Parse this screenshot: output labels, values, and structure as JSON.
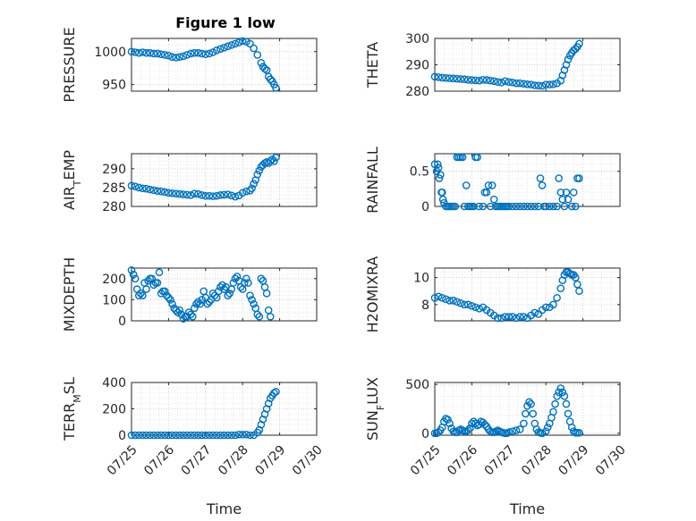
{
  "title": "Figure 1 low",
  "color": "#0072bd",
  "chart_data": [
    {
      "type": "scatter",
      "xlabel": "",
      "ylabel": "PRESSURE",
      "ylabel_main": "PRESSURE",
      "ylabel_sub": "",
      "ylabel_rest": "",
      "xlim": [
        0,
        5
      ],
      "ylim": [
        940,
        1020
      ],
      "yticks": [
        950,
        1000
      ],
      "ytick_labels": [
        "950",
        "1000"
      ],
      "xticks": [
        0,
        1,
        2,
        3,
        4,
        5
      ],
      "xtick_labels": [
        "07/25",
        "07/26",
        "07/27",
        "07/28",
        "07/29",
        "07/30"
      ],
      "show_xtick_labels": false,
      "grid": true,
      "x": [
        0,
        0.1,
        0.2,
        0.3,
        0.4,
        0.5,
        0.6,
        0.7,
        0.8,
        0.9,
        1.0,
        1.1,
        1.2,
        1.3,
        1.4,
        1.5,
        1.6,
        1.7,
        1.8,
        1.9,
        2.0,
        2.1,
        2.2,
        2.3,
        2.4,
        2.5,
        2.6,
        2.7,
        2.8,
        2.9,
        3.0,
        3.1,
        3.2,
        3.3,
        3.4,
        3.5,
        3.55,
        3.6,
        3.65,
        3.7,
        3.75,
        3.8,
        3.85,
        3.9
      ],
      "y": [
        1000,
        999,
        998,
        999,
        998,
        998,
        997,
        997,
        996,
        995,
        994,
        992,
        991,
        992,
        993,
        995,
        997,
        998,
        998,
        997,
        996,
        997,
        999,
        1002,
        1004,
        1006,
        1008,
        1010,
        1012,
        1014,
        1016,
        1015,
        1012,
        1005,
        995,
        983,
        977,
        974,
        972,
        962,
        958,
        955,
        950,
        945
      ]
    },
    {
      "type": "scatter",
      "xlabel": "",
      "ylabel": "THETA",
      "ylabel_main": "THETA",
      "ylabel_sub": "",
      "ylabel_rest": "",
      "xlim": [
        0,
        5
      ],
      "ylim": [
        280,
        300
      ],
      "yticks": [
        280,
        290,
        300
      ],
      "ytick_labels": [
        "280",
        "290",
        "300"
      ],
      "xticks": [
        0,
        1,
        2,
        3,
        4,
        5
      ],
      "xtick_labels": [
        "07/25",
        "07/26",
        "07/27",
        "07/28",
        "07/29",
        "07/30"
      ],
      "show_xtick_labels": false,
      "grid": true,
      "x": [
        0,
        0.1,
        0.2,
        0.3,
        0.4,
        0.5,
        0.6,
        0.7,
        0.8,
        0.9,
        1.0,
        1.1,
        1.2,
        1.3,
        1.4,
        1.5,
        1.6,
        1.7,
        1.8,
        1.9,
        2.0,
        2.1,
        2.2,
        2.3,
        2.4,
        2.5,
        2.6,
        2.7,
        2.8,
        2.9,
        3.0,
        3.1,
        3.2,
        3.3,
        3.4,
        3.45,
        3.5,
        3.55,
        3.6,
        3.65,
        3.7,
        3.75,
        3.8,
        3.85,
        3.9
      ],
      "y": [
        285.5,
        285.3,
        285.1,
        285.0,
        284.9,
        284.8,
        284.7,
        284.6,
        284.5,
        284.3,
        284.2,
        284.1,
        284.0,
        284.3,
        284.2,
        284.0,
        283.8,
        283.5,
        283.3,
        283.8,
        283.5,
        283.3,
        283.0,
        283.0,
        282.8,
        282.6,
        282.5,
        282.2,
        282.1,
        282.0,
        282.5,
        282.5,
        282.6,
        283.0,
        284.0,
        286.0,
        288.0,
        290.0,
        292.0,
        293.5,
        294.5,
        295.5,
        296.0,
        296.8,
        298.0
      ]
    },
    {
      "type": "scatter",
      "xlabel": "",
      "ylabel": "AIR_TEMP",
      "ylabel_main": "AIR",
      "ylabel_sub": "T",
      "ylabel_rest": "EMP",
      "xlim": [
        0,
        5
      ],
      "ylim": [
        280,
        294
      ],
      "yticks": [
        280,
        285,
        290
      ],
      "ytick_labels": [
        "280",
        "285",
        "290"
      ],
      "xticks": [
        0,
        1,
        2,
        3,
        4,
        5
      ],
      "xtick_labels": [
        "07/25",
        "07/26",
        "07/27",
        "07/28",
        "07/29",
        "07/30"
      ],
      "show_xtick_labels": false,
      "grid": true,
      "x": [
        0,
        0.1,
        0.2,
        0.3,
        0.4,
        0.5,
        0.6,
        0.7,
        0.8,
        0.9,
        1.0,
        1.1,
        1.2,
        1.3,
        1.4,
        1.5,
        1.6,
        1.7,
        1.8,
        1.9,
        2.0,
        2.1,
        2.2,
        2.3,
        2.4,
        2.5,
        2.6,
        2.7,
        2.8,
        2.9,
        3.0,
        3.1,
        3.2,
        3.25,
        3.3,
        3.35,
        3.4,
        3.45,
        3.5,
        3.55,
        3.6,
        3.65,
        3.7,
        3.75,
        3.8,
        3.85,
        3.9
      ],
      "y": [
        285.5,
        285.3,
        285.0,
        284.8,
        284.7,
        284.5,
        284.3,
        284.1,
        284.0,
        283.8,
        283.6,
        283.5,
        283.4,
        283.3,
        283.2,
        283.1,
        283.0,
        283.4,
        283.3,
        283.0,
        282.8,
        282.8,
        282.7,
        282.8,
        283.0,
        283.1,
        283.2,
        282.9,
        282.6,
        282.9,
        283.6,
        284.0,
        284.2,
        284.8,
        286.0,
        287.0,
        288.5,
        289.5,
        290.5,
        291.0,
        291.5,
        291.8,
        291.5,
        292.0,
        292.5,
        292.0,
        293.0
      ]
    },
    {
      "type": "scatter",
      "xlabel": "",
      "ylabel": "RAINFALL",
      "ylabel_main": "RAINFALL",
      "ylabel_sub": "",
      "ylabel_rest": "",
      "xlim": [
        0,
        5
      ],
      "ylim": [
        0,
        0.75
      ],
      "yticks": [
        0,
        0.5
      ],
      "ytick_labels": [
        "0",
        "0.5"
      ],
      "xticks": [
        0,
        1,
        2,
        3,
        4,
        5
      ],
      "xtick_labels": [
        "07/25",
        "07/26",
        "07/27",
        "07/28",
        "07/29",
        "07/30"
      ],
      "show_xtick_labels": false,
      "grid": true,
      "x": [
        0,
        0.05,
        0.08,
        0.1,
        0.12,
        0.15,
        0.18,
        0.2,
        0.22,
        0.25,
        0.3,
        0.35,
        0.4,
        0.45,
        0.5,
        0.55,
        0.6,
        0.65,
        0.7,
        0.75,
        0.8,
        0.85,
        0.9,
        0.95,
        1.0,
        1.05,
        1.1,
        1.15,
        1.2,
        1.3,
        1.35,
        1.4,
        1.45,
        1.5,
        1.55,
        1.6,
        1.65,
        1.7,
        1.75,
        1.8,
        1.85,
        1.9,
        1.95,
        2.0,
        2.1,
        2.2,
        2.3,
        2.4,
        2.5,
        2.6,
        2.7,
        2.8,
        2.85,
        2.9,
        2.95,
        3.0,
        3.1,
        3.2,
        3.3,
        3.35,
        3.4,
        3.45,
        3.5,
        3.55,
        3.6,
        3.7,
        3.75,
        3.8,
        3.85,
        3.9
      ],
      "y": [
        0.6,
        0.5,
        0.6,
        0.55,
        0.4,
        0.45,
        0.2,
        0.2,
        0.1,
        0.05,
        0,
        0,
        0,
        0,
        0,
        0,
        0.7,
        0.7,
        0.7,
        0.7,
        0,
        0.3,
        0,
        0,
        0,
        0,
        0.7,
        0.7,
        0,
        0,
        0.2,
        0.2,
        0.3,
        0,
        0.3,
        0.1,
        0,
        0,
        0,
        0,
        0,
        0,
        0,
        0,
        0,
        0,
        0,
        0,
        0,
        0,
        0,
        0,
        0.4,
        0.3,
        0,
        0,
        0,
        0,
        0,
        0.4,
        0.2,
        0.1,
        0,
        0.2,
        0.1,
        0,
        0.2,
        0,
        0.4,
        0.4
      ]
    },
    {
      "type": "scatter",
      "xlabel": "",
      "ylabel": "MIXDEPTH",
      "ylabel_main": "MIXDEPTH",
      "ylabel_sub": "",
      "ylabel_rest": "",
      "xlim": [
        0,
        5
      ],
      "ylim": [
        0,
        250
      ],
      "yticks": [
        0,
        100,
        200
      ],
      "ytick_labels": [
        "0",
        "100",
        "200"
      ],
      "xticks": [
        0,
        1,
        2,
        3,
        4,
        5
      ],
      "xtick_labels": [
        "07/25",
        "07/26",
        "07/27",
        "07/28",
        "07/29",
        "07/30"
      ],
      "show_xtick_labels": false,
      "grid": true,
      "x": [
        0,
        0.05,
        0.1,
        0.15,
        0.2,
        0.25,
        0.3,
        0.35,
        0.4,
        0.45,
        0.5,
        0.55,
        0.6,
        0.65,
        0.7,
        0.75,
        0.8,
        0.85,
        0.9,
        0.95,
        1.0,
        1.05,
        1.1,
        1.15,
        1.2,
        1.25,
        1.3,
        1.35,
        1.4,
        1.45,
        1.5,
        1.55,
        1.6,
        1.65,
        1.7,
        1.75,
        1.8,
        1.85,
        1.9,
        1.95,
        2.0,
        2.05,
        2.1,
        2.15,
        2.2,
        2.25,
        2.3,
        2.35,
        2.4,
        2.45,
        2.5,
        2.55,
        2.6,
        2.65,
        2.7,
        2.75,
        2.8,
        2.85,
        2.9,
        2.95,
        3.0,
        3.05,
        3.1,
        3.15,
        3.2,
        3.25,
        3.3,
        3.35,
        3.4,
        3.45,
        3.5,
        3.55,
        3.6,
        3.65,
        3.7,
        3.75
      ],
      "y": [
        240,
        220,
        200,
        150,
        120,
        130,
        120,
        180,
        150,
        190,
        200,
        200,
        170,
        180,
        180,
        230,
        130,
        140,
        140,
        120,
        110,
        100,
        80,
        60,
        50,
        40,
        50,
        30,
        10,
        20,
        20,
        40,
        30,
        20,
        60,
        80,
        90,
        80,
        100,
        140,
        110,
        80,
        90,
        100,
        130,
        120,
        110,
        140,
        160,
        170,
        150,
        160,
        120,
        130,
        150,
        180,
        200,
        210,
        190,
        160,
        150,
        180,
        200,
        180,
        120,
        100,
        80,
        60,
        30,
        20,
        200,
        190,
        160,
        130,
        50,
        20
      ]
    },
    {
      "type": "scatter",
      "xlabel": "",
      "ylabel": "H2OMIXRA",
      "ylabel_main": "H2OMIXRA",
      "ylabel_sub": "",
      "ylabel_rest": "",
      "xlim": [
        0,
        5
      ],
      "ylim": [
        6.8,
        10.7
      ],
      "yticks": [
        8,
        10
      ],
      "ytick_labels": [
        "8",
        "10"
      ],
      "xticks": [
        0,
        1,
        2,
        3,
        4,
        5
      ],
      "xtick_labels": [
        "07/25",
        "07/26",
        "07/27",
        "07/28",
        "07/29",
        "07/30"
      ],
      "show_xtick_labels": false,
      "grid": true,
      "x": [
        0,
        0.1,
        0.2,
        0.3,
        0.4,
        0.5,
        0.6,
        0.7,
        0.8,
        0.9,
        1.0,
        1.1,
        1.2,
        1.3,
        1.4,
        1.5,
        1.6,
        1.7,
        1.8,
        1.9,
        2.0,
        2.1,
        2.2,
        2.3,
        2.4,
        2.5,
        2.6,
        2.7,
        2.8,
        2.9,
        3.0,
        3.1,
        3.2,
        3.3,
        3.4,
        3.45,
        3.5,
        3.55,
        3.6,
        3.65,
        3.7,
        3.75,
        3.8,
        3.85,
        3.9
      ],
      "y": [
        8.5,
        8.6,
        8.5,
        8.4,
        8.3,
        8.3,
        8.2,
        8.1,
        8.0,
        8.0,
        7.9,
        7.8,
        7.7,
        7.8,
        7.6,
        7.4,
        7.2,
        7.0,
        7.0,
        7.1,
        7.1,
        7.1,
        7.0,
        7.1,
        7.1,
        7.0,
        7.2,
        7.4,
        7.3,
        7.6,
        7.8,
        7.8,
        8.0,
        8.5,
        9.2,
        9.8,
        10.2,
        10.4,
        10.4,
        10.3,
        10.2,
        10.2,
        10.0,
        9.5,
        9.0
      ]
    },
    {
      "type": "scatter",
      "xlabel": "Time",
      "ylabel": "TERR_MSL",
      "ylabel_main": "TERR",
      "ylabel_sub": "M",
      "ylabel_rest": "SL",
      "xlim": [
        0,
        5
      ],
      "ylim": [
        0,
        400
      ],
      "yticks": [
        0,
        200,
        400
      ],
      "ytick_labels": [
        "0",
        "200",
        "400"
      ],
      "xticks": [
        0,
        1,
        2,
        3,
        4,
        5
      ],
      "xtick_labels": [
        "07/25",
        "07/26",
        "07/27",
        "07/28",
        "07/29",
        "07/30"
      ],
      "show_xtick_labels": true,
      "grid": true,
      "x": [
        0,
        0.1,
        0.2,
        0.3,
        0.4,
        0.5,
        0.6,
        0.7,
        0.8,
        0.9,
        1.0,
        1.1,
        1.2,
        1.3,
        1.4,
        1.5,
        1.6,
        1.7,
        1.8,
        1.9,
        2.0,
        2.1,
        2.2,
        2.3,
        2.4,
        2.5,
        2.6,
        2.7,
        2.8,
        2.9,
        3.0,
        3.1,
        3.2,
        3.3,
        3.4,
        3.45,
        3.5,
        3.55,
        3.6,
        3.65,
        3.7,
        3.75,
        3.8,
        3.85,
        3.9
      ],
      "y": [
        0,
        0,
        0,
        0,
        0,
        0,
        0,
        0,
        0,
        0,
        0,
        0,
        0,
        0,
        0,
        0,
        0,
        0,
        0,
        0,
        0,
        0,
        0,
        0,
        0,
        0,
        0,
        0,
        0,
        5,
        5,
        5,
        0,
        0,
        20,
        40,
        80,
        120,
        160,
        200,
        240,
        280,
        300,
        320,
        330
      ]
    },
    {
      "type": "scatter",
      "xlabel": "Time",
      "ylabel": "SUN_FLUX",
      "ylabel_main": "SUN",
      "ylabel_sub": "F",
      "ylabel_rest": "LUX",
      "xlim": [
        0,
        5
      ],
      "ylim": [
        -20,
        520
      ],
      "yticks": [
        0,
        500
      ],
      "ytick_labels": [
        "0",
        "500"
      ],
      "xticks": [
        0,
        1,
        2,
        3,
        4,
        5
      ],
      "xtick_labels": [
        "07/25",
        "07/26",
        "07/27",
        "07/28",
        "07/29",
        "07/30"
      ],
      "show_xtick_labels": true,
      "grid": true,
      "x": [
        0,
        0.05,
        0.1,
        0.15,
        0.2,
        0.25,
        0.3,
        0.35,
        0.4,
        0.45,
        0.5,
        0.55,
        0.6,
        0.65,
        0.7,
        0.75,
        0.8,
        0.85,
        0.9,
        0.95,
        1.0,
        1.05,
        1.1,
        1.15,
        1.2,
        1.25,
        1.3,
        1.35,
        1.4,
        1.45,
        1.5,
        1.55,
        1.6,
        1.65,
        1.7,
        1.75,
        1.8,
        1.85,
        1.9,
        1.95,
        2.0,
        2.1,
        2.2,
        2.3,
        2.4,
        2.45,
        2.5,
        2.55,
        2.6,
        2.65,
        2.7,
        2.75,
        2.8,
        2.85,
        2.9,
        3.0,
        3.05,
        3.1,
        3.15,
        3.2,
        3.25,
        3.3,
        3.35,
        3.4,
        3.45,
        3.5,
        3.55,
        3.6,
        3.65,
        3.7,
        3.75,
        3.8,
        3.85,
        3.9
      ],
      "y": [
        0,
        0,
        10,
        30,
        60,
        120,
        150,
        140,
        100,
        50,
        20,
        10,
        10,
        30,
        40,
        30,
        20,
        20,
        30,
        50,
        100,
        120,
        100,
        80,
        90,
        120,
        110,
        90,
        70,
        40,
        20,
        10,
        10,
        20,
        30,
        20,
        10,
        5,
        0,
        0,
        10,
        20,
        30,
        40,
        100,
        200,
        280,
        320,
        300,
        200,
        100,
        40,
        10,
        5,
        0,
        20,
        60,
        100,
        160,
        220,
        300,
        380,
        420,
        460,
        420,
        380,
        300,
        200,
        120,
        60,
        20,
        5,
        5,
        5
      ]
    }
  ]
}
